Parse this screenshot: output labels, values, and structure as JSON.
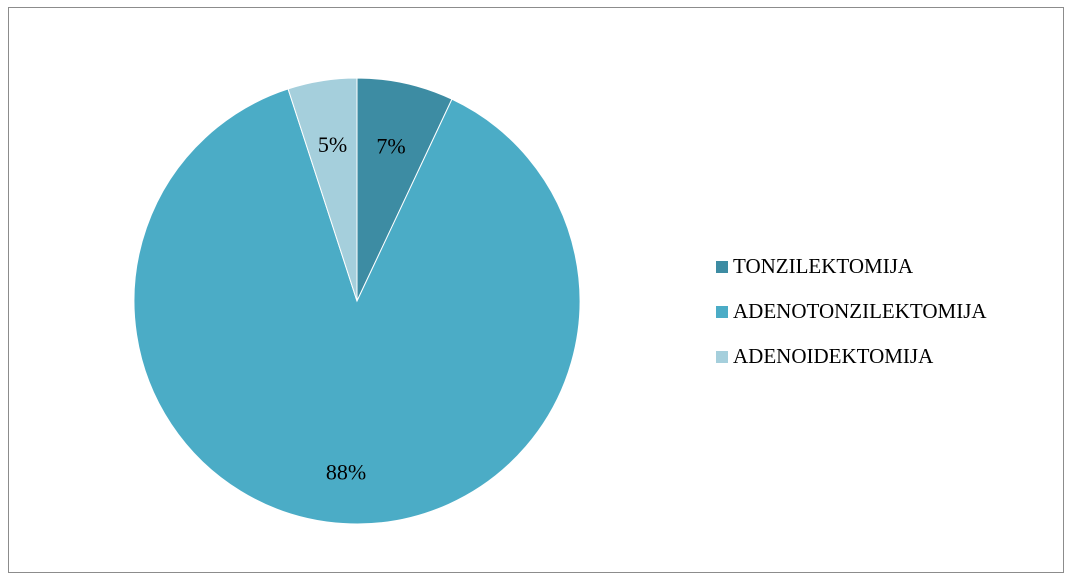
{
  "chart_data": {
    "type": "pie",
    "title": "",
    "legend_position": "right",
    "slices": [
      {
        "name": "TONZILEKTOMIJA",
        "value": 7,
        "label": "7%",
        "color": "#3d8ca3"
      },
      {
        "name": "ADENOTONZILEKTOMIJA",
        "value": 88,
        "label": "88%",
        "color": "#4bacc6"
      },
      {
        "name": "ADENOIDEKTOMIJA",
        "value": 5,
        "label": "5%",
        "color": "#a5cfdc"
      }
    ],
    "start_angle_deg": 0,
    "direction": "clockwise",
    "slice_border_color": "#ffffff"
  }
}
